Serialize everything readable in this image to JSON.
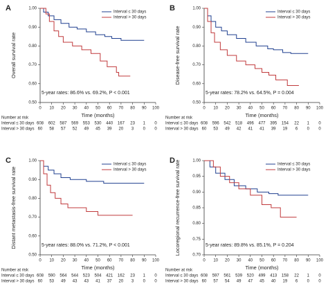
{
  "chart_data": [
    {
      "type": "line",
      "panel_label": "A",
      "ylabel": "Overall survival rate",
      "xlabel": "Time (months)",
      "annotation": "5-year rates: 86.6% vs. 69.2%, P < 0.001",
      "xlim": [
        0,
        100
      ],
      "xticks": [
        0,
        10,
        20,
        30,
        40,
        50,
        60,
        70,
        80,
        90,
        100
      ],
      "ylim": [
        0.5,
        1.0
      ],
      "yticks": [
        {
          "value": 1.0,
          "label": "1.00"
        },
        {
          "value": 0.9,
          "label": "0.90"
        },
        {
          "value": 0.8,
          "label": "0.80"
        },
        {
          "value": 0.7,
          "label": "0.70"
        },
        {
          "value": 0.6,
          "label": "0.60"
        },
        {
          "value": 0.5,
          "label": "0.50"
        }
      ],
      "series": [
        {
          "name": "Interval ≤ 30 days",
          "color": "#1f3f8f",
          "x": [
            0,
            3,
            3,
            7,
            7,
            12,
            12,
            18,
            18,
            25,
            25,
            32,
            32,
            40,
            40,
            48,
            48,
            56,
            56,
            62,
            62,
            70,
            70,
            90
          ],
          "values": [
            1,
            1,
            0.98,
            0.98,
            0.96,
            0.96,
            0.94,
            0.94,
            0.92,
            0.92,
            0.9,
            0.9,
            0.89,
            0.89,
            0.875,
            0.875,
            0.86,
            0.86,
            0.85,
            0.85,
            0.84,
            0.84,
            0.83,
            0.83
          ]
        },
        {
          "name": "Interval > 30 days",
          "color": "#c0393b",
          "x": [
            0,
            5,
            5,
            8,
            8,
            12,
            12,
            16,
            16,
            20,
            20,
            28,
            28,
            36,
            36,
            44,
            44,
            52,
            52,
            58,
            58,
            66,
            66,
            68,
            68,
            78
          ],
          "values": [
            1,
            1,
            0.97,
            0.97,
            0.93,
            0.93,
            0.88,
            0.88,
            0.85,
            0.85,
            0.82,
            0.82,
            0.8,
            0.8,
            0.78,
            0.78,
            0.76,
            0.76,
            0.72,
            0.72,
            0.69,
            0.69,
            0.66,
            0.66,
            0.64,
            0.64
          ]
        }
      ],
      "at_risk": {
        "title": "Number at risk",
        "rows": [
          {
            "label": "Interval ≤ 30 days",
            "values": [
              608,
              602,
              587,
              569,
              553,
              530,
              440,
              167,
              23,
              1,
              0
            ]
          },
          {
            "label": "Interval > 30 days",
            "values": [
              60,
              58,
              57,
              52,
              49,
              45,
              39,
              20,
              3,
              0,
              0
            ]
          }
        ]
      }
    },
    {
      "type": "line",
      "panel_label": "B",
      "ylabel": "Disease-free survival rate",
      "xlabel": "Time (months)",
      "annotation": "5-year rates: 78.2% vs. 64.5%, P = 0.004",
      "xlim": [
        0,
        100
      ],
      "xticks": [
        0,
        10,
        20,
        30,
        40,
        50,
        60,
        70,
        80,
        90,
        100
      ],
      "ylim": [
        0.5,
        1.0
      ],
      "yticks": [
        {
          "value": 1.0,
          "label": "1.00"
        },
        {
          "value": 0.9,
          "label": "0.90"
        },
        {
          "value": 0.8,
          "label": "0.80"
        },
        {
          "value": 0.7,
          "label": "0.70"
        },
        {
          "value": 0.6,
          "label": "0.60"
        },
        {
          "value": 0.5,
          "label": "0.50"
        }
      ],
      "series": [
        {
          "name": "Interval ≤ 30 days",
          "color": "#1f3f8f",
          "x": [
            0,
            3,
            3,
            6,
            6,
            10,
            10,
            15,
            15,
            20,
            20,
            28,
            28,
            36,
            36,
            45,
            45,
            55,
            55,
            60,
            60,
            68,
            68,
            75,
            75,
            90
          ],
          "values": [
            1,
            1,
            0.96,
            0.96,
            0.93,
            0.93,
            0.9,
            0.9,
            0.88,
            0.88,
            0.86,
            0.86,
            0.84,
            0.84,
            0.82,
            0.82,
            0.8,
            0.8,
            0.785,
            0.785,
            0.78,
            0.78,
            0.765,
            0.765,
            0.76,
            0.76
          ]
        },
        {
          "name": "Interval > 30 days",
          "color": "#c0393b",
          "x": [
            0,
            3,
            3,
            6,
            6,
            9,
            9,
            14,
            14,
            20,
            20,
            28,
            28,
            36,
            36,
            44,
            44,
            50,
            50,
            56,
            56,
            62,
            62,
            72,
            72,
            82
          ],
          "values": [
            1,
            1,
            0.93,
            0.93,
            0.87,
            0.87,
            0.82,
            0.82,
            0.78,
            0.78,
            0.75,
            0.75,
            0.72,
            0.72,
            0.7,
            0.7,
            0.68,
            0.68,
            0.66,
            0.66,
            0.645,
            0.645,
            0.62,
            0.62,
            0.59,
            0.59
          ]
        }
      ],
      "at_risk": {
        "title": "Number at risk",
        "rows": [
          {
            "label": "Interval ≤ 30 days",
            "values": [
              608,
              596,
              542,
              518,
              496,
              477,
              395,
              154,
              22,
              1,
              0
            ]
          },
          {
            "label": "Interval > 30 days",
            "values": [
              60,
              53,
              49,
              42,
              41,
              41,
              39,
              19,
              6,
              0,
              0
            ]
          }
        ]
      }
    },
    {
      "type": "line",
      "panel_label": "C",
      "ylabel": "Distant metastasis-free survival rate",
      "xlabel": "Time (months)",
      "annotation": "5-year rates: 88.0% vs. 71.2%, P < 0.001",
      "xlim": [
        0,
        100
      ],
      "xticks": [
        0,
        10,
        20,
        30,
        40,
        50,
        60,
        70,
        80,
        90,
        100
      ],
      "ylim": [
        0.5,
        1.0
      ],
      "yticks": [
        {
          "value": 1.0,
          "label": "1.00"
        },
        {
          "value": 0.9,
          "label": "0.90"
        },
        {
          "value": 0.8,
          "label": "0.80"
        },
        {
          "value": 0.7,
          "label": "0.70"
        },
        {
          "value": 0.6,
          "label": "0.60"
        },
        {
          "value": 0.5,
          "label": "0.50"
        }
      ],
      "series": [
        {
          "name": "Interval ≤ 30 days",
          "color": "#1f3f8f",
          "x": [
            0,
            3,
            3,
            7,
            7,
            12,
            12,
            18,
            18,
            26,
            26,
            40,
            40,
            55,
            55,
            90
          ],
          "values": [
            1,
            1,
            0.97,
            0.97,
            0.95,
            0.95,
            0.93,
            0.93,
            0.91,
            0.91,
            0.9,
            0.9,
            0.89,
            0.89,
            0.88,
            0.88
          ]
        },
        {
          "name": "Interval > 30 days",
          "color": "#c0393b",
          "x": [
            0,
            3,
            3,
            6,
            6,
            9,
            9,
            13,
            13,
            18,
            18,
            24,
            24,
            40,
            40,
            50,
            50,
            80
          ],
          "values": [
            1,
            1,
            0.93,
            0.93,
            0.87,
            0.87,
            0.83,
            0.83,
            0.8,
            0.8,
            0.77,
            0.77,
            0.75,
            0.75,
            0.73,
            0.73,
            0.71,
            0.71
          ]
        }
      ],
      "at_risk": {
        "title": "Number at risk",
        "rows": [
          {
            "label": "Interval ≤ 30 days",
            "values": [
              608,
              590,
              564,
              544,
              523,
              504,
              421,
              162,
              23,
              1,
              0
            ]
          },
          {
            "label": "Interval > 30 days",
            "values": [
              60,
              53,
              49,
              43,
              43,
              41,
              37,
              20,
              3,
              0,
              0
            ]
          }
        ]
      }
    },
    {
      "type": "line",
      "panel_label": "D",
      "ylabel": "Locoregional recurrence-free survival rate",
      "xlabel": "Time (months)",
      "annotation": "5-year rates: 89.8% vs. 85.1%, P = 0.204",
      "xlim": [
        0,
        100
      ],
      "xticks": [
        0,
        10,
        20,
        30,
        40,
        50,
        60,
        70,
        80,
        90,
        100
      ],
      "ylim": [
        0.7,
        1.0
      ],
      "yticks": [
        {
          "value": 1.0,
          "label": "1.00"
        },
        {
          "value": 0.95,
          "label": "0.95"
        },
        {
          "value": 0.9,
          "label": "0.90"
        },
        {
          "value": 0.85,
          "label": "0.85"
        },
        {
          "value": 0.8,
          "label": "0.80"
        },
        {
          "value": 0.75,
          "label": "0.75"
        },
        {
          "value": 0.7,
          "label": "0.70"
        }
      ],
      "series": [
        {
          "name": "Interval ≤ 30 days",
          "color": "#1f3f8f",
          "x": [
            0,
            5,
            5,
            10,
            10,
            18,
            18,
            26,
            26,
            36,
            36,
            46,
            46,
            56,
            56,
            64,
            64,
            90
          ],
          "values": [
            1,
            1,
            0.98,
            0.98,
            0.96,
            0.96,
            0.94,
            0.94,
            0.92,
            0.92,
            0.91,
            0.91,
            0.9,
            0.9,
            0.895,
            0.895,
            0.89,
            0.89
          ]
        },
        {
          "name": "Interval > 30 days",
          "color": "#c0393b",
          "x": [
            0,
            8,
            8,
            14,
            14,
            22,
            22,
            30,
            30,
            40,
            40,
            50,
            50,
            58,
            58,
            66,
            66,
            80
          ],
          "values": [
            1,
            1,
            0.98,
            0.98,
            0.95,
            0.95,
            0.93,
            0.93,
            0.91,
            0.91,
            0.89,
            0.89,
            0.86,
            0.86,
            0.85,
            0.85,
            0.82,
            0.82
          ]
        }
      ],
      "at_risk": {
        "title": "Number at risk",
        "rows": [
          {
            "label": "Interval ≤ 30 days",
            "values": [
              608,
              597,
              561,
              539,
              520,
              499,
              413,
              158,
              22,
              1,
              0
            ]
          },
          {
            "label": "Interval > 30 days",
            "values": [
              60,
              57,
              54,
              49,
              47,
              45,
              40,
              19,
              6,
              0,
              0
            ]
          }
        ]
      }
    }
  ]
}
